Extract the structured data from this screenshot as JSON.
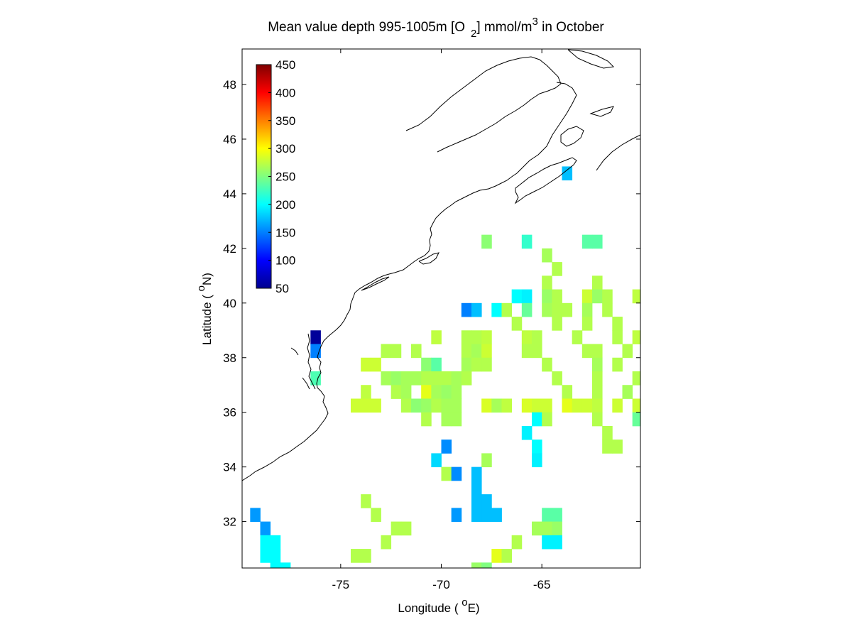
{
  "title": {
    "prefix": "Mean value depth 995-1005m [O",
    "subscript": "2",
    "middle": "] mmol/m",
    "superscript": "3",
    "suffix": " in October"
  },
  "xlabel": {
    "prefix": "Longitude ( ",
    "degree": "o",
    "suffix": "E)"
  },
  "ylabel": {
    "prefix": "Latitude ( ",
    "degree": "o",
    "suffix": "N)"
  },
  "colorbar": {
    "ticks": [
      "450",
      "400",
      "350",
      "300",
      "250",
      "200",
      "150",
      "100",
      "50"
    ],
    "range": [
      50,
      450
    ],
    "colormap": "jet",
    "placement": "top-left inside axes"
  },
  "chart_data": {
    "type": "heatmap",
    "title": "Mean value depth 995-1005m [O2] mmol/m3 in October",
    "xlabel": "Longitude ( oE)",
    "ylabel": "Latitude ( oN)",
    "xlim": [
      -79.9,
      -60.1
    ],
    "ylim": [
      30.3,
      49.3
    ],
    "x_ticks": [
      -75,
      -70,
      -65
    ],
    "y_ticks": [
      32,
      34,
      36,
      38,
      40,
      42,
      44,
      46,
      48
    ],
    "x_tick_labels": [
      "-75",
      "-70",
      "-65"
    ],
    "y_tick_labels": [
      "32",
      "34",
      "36",
      "38",
      "40",
      "42",
      "44",
      "46",
      "48"
    ],
    "grid": false,
    "cell_size_deg": 0.5,
    "cells": [
      {
        "lon": -67.75,
        "lat": 42.25,
        "v": 255
      },
      {
        "lon": -65.75,
        "lat": 42.25,
        "v": 220
      },
      {
        "lon": -62.75,
        "lat": 42.25,
        "v": 235
      },
      {
        "lon": -62.25,
        "lat": 42.25,
        "v": 235
      },
      {
        "lon": -64.75,
        "lat": 41.75,
        "v": 265
      },
      {
        "lon": -64.25,
        "lat": 41.25,
        "v": 270
      },
      {
        "lon": -64.75,
        "lat": 40.75,
        "v": 270
      },
      {
        "lon": -62.25,
        "lat": 40.75,
        "v": 270
      },
      {
        "lon": -66.25,
        "lat": 40.25,
        "v": 200
      },
      {
        "lon": -65.75,
        "lat": 40.25,
        "v": 195
      },
      {
        "lon": -64.75,
        "lat": 40.25,
        "v": 260
      },
      {
        "lon": -64.25,
        "lat": 40.25,
        "v": 270
      },
      {
        "lon": -62.75,
        "lat": 40.25,
        "v": 280
      },
      {
        "lon": -62.25,
        "lat": 40.25,
        "v": 260
      },
      {
        "lon": -61.75,
        "lat": 40.25,
        "v": 270
      },
      {
        "lon": -60.25,
        "lat": 40.25,
        "v": 275
      },
      {
        "lon": -68.75,
        "lat": 39.75,
        "v": 150
      },
      {
        "lon": -68.25,
        "lat": 39.75,
        "v": 175
      },
      {
        "lon": -67.25,
        "lat": 39.75,
        "v": 200
      },
      {
        "lon": -66.75,
        "lat": 39.75,
        "v": 270
      },
      {
        "lon": -65.75,
        "lat": 39.75,
        "v": 240
      },
      {
        "lon": -64.75,
        "lat": 39.75,
        "v": 265
      },
      {
        "lon": -64.25,
        "lat": 39.75,
        "v": 270
      },
      {
        "lon": -63.75,
        "lat": 39.75,
        "v": 270
      },
      {
        "lon": -62.75,
        "lat": 39.75,
        "v": 265
      },
      {
        "lon": -61.75,
        "lat": 39.75,
        "v": 270
      },
      {
        "lon": -66.25,
        "lat": 39.25,
        "v": 270
      },
      {
        "lon": -64.25,
        "lat": 39.25,
        "v": 270
      },
      {
        "lon": -62.75,
        "lat": 39.25,
        "v": 270
      },
      {
        "lon": -61.25,
        "lat": 39.25,
        "v": 270
      },
      {
        "lon": -70.25,
        "lat": 38.75,
        "v": 275
      },
      {
        "lon": -68.75,
        "lat": 38.75,
        "v": 270
      },
      {
        "lon": -68.25,
        "lat": 38.75,
        "v": 270
      },
      {
        "lon": -67.75,
        "lat": 38.75,
        "v": 275
      },
      {
        "lon": -65.75,
        "lat": 38.75,
        "v": 275
      },
      {
        "lon": -65.25,
        "lat": 38.75,
        "v": 270
      },
      {
        "lon": -63.25,
        "lat": 38.75,
        "v": 270
      },
      {
        "lon": -61.25,
        "lat": 38.75,
        "v": 270
      },
      {
        "lon": -60.25,
        "lat": 38.75,
        "v": 275
      },
      {
        "lon": -72.75,
        "lat": 38.25,
        "v": 270
      },
      {
        "lon": -72.25,
        "lat": 38.25,
        "v": 270
      },
      {
        "lon": -71.25,
        "lat": 38.25,
        "v": 270
      },
      {
        "lon": -68.75,
        "lat": 38.25,
        "v": 270
      },
      {
        "lon": -68.25,
        "lat": 38.25,
        "v": 265
      },
      {
        "lon": -67.75,
        "lat": 38.25,
        "v": 280
      },
      {
        "lon": -65.75,
        "lat": 38.25,
        "v": 270
      },
      {
        "lon": -65.25,
        "lat": 38.25,
        "v": 270
      },
      {
        "lon": -62.75,
        "lat": 38.25,
        "v": 270
      },
      {
        "lon": -62.25,
        "lat": 38.25,
        "v": 270
      },
      {
        "lon": -60.75,
        "lat": 38.25,
        "v": 270
      },
      {
        "lon": -73.75,
        "lat": 37.75,
        "v": 280
      },
      {
        "lon": -73.25,
        "lat": 37.75,
        "v": 280
      },
      {
        "lon": -70.75,
        "lat": 37.75,
        "v": 255
      },
      {
        "lon": -70.25,
        "lat": 37.75,
        "v": 235
      },
      {
        "lon": -68.75,
        "lat": 37.75,
        "v": 265
      },
      {
        "lon": -68.25,
        "lat": 37.75,
        "v": 270
      },
      {
        "lon": -67.75,
        "lat": 37.75,
        "v": 270
      },
      {
        "lon": -64.75,
        "lat": 37.75,
        "v": 270
      },
      {
        "lon": -62.25,
        "lat": 37.75,
        "v": 265
      },
      {
        "lon": -61.25,
        "lat": 37.75,
        "v": 270
      },
      {
        "lon": -72.75,
        "lat": 37.25,
        "v": 265
      },
      {
        "lon": -72.25,
        "lat": 37.25,
        "v": 260
      },
      {
        "lon": -71.75,
        "lat": 37.25,
        "v": 265
      },
      {
        "lon": -71.25,
        "lat": 37.25,
        "v": 265
      },
      {
        "lon": -70.75,
        "lat": 37.25,
        "v": 270
      },
      {
        "lon": -70.25,
        "lat": 37.25,
        "v": 270
      },
      {
        "lon": -69.75,
        "lat": 37.25,
        "v": 270
      },
      {
        "lon": -69.25,
        "lat": 37.25,
        "v": 265
      },
      {
        "lon": -68.75,
        "lat": 37.25,
        "v": 270
      },
      {
        "lon": -64.25,
        "lat": 37.25,
        "v": 270
      },
      {
        "lon": -62.25,
        "lat": 37.25,
        "v": 270
      },
      {
        "lon": -60.25,
        "lat": 37.25,
        "v": 270
      },
      {
        "lon": -73.75,
        "lat": 36.75,
        "v": 275
      },
      {
        "lon": -72.25,
        "lat": 36.75,
        "v": 270
      },
      {
        "lon": -71.75,
        "lat": 36.75,
        "v": 265
      },
      {
        "lon": -70.75,
        "lat": 36.75,
        "v": 290
      },
      {
        "lon": -70.25,
        "lat": 36.75,
        "v": 265
      },
      {
        "lon": -69.75,
        "lat": 36.75,
        "v": 260
      },
      {
        "lon": -69.25,
        "lat": 36.75,
        "v": 265
      },
      {
        "lon": -63.75,
        "lat": 36.75,
        "v": 270
      },
      {
        "lon": -62.25,
        "lat": 36.75,
        "v": 270
      },
      {
        "lon": -60.75,
        "lat": 36.75,
        "v": 265
      },
      {
        "lon": -74.25,
        "lat": 36.25,
        "v": 280
      },
      {
        "lon": -73.75,
        "lat": 36.25,
        "v": 280
      },
      {
        "lon": -73.25,
        "lat": 36.25,
        "v": 280
      },
      {
        "lon": -71.75,
        "lat": 36.25,
        "v": 270
      },
      {
        "lon": -71.25,
        "lat": 36.25,
        "v": 255
      },
      {
        "lon": -70.75,
        "lat": 36.25,
        "v": 260
      },
      {
        "lon": -70.25,
        "lat": 36.25,
        "v": 270
      },
      {
        "lon": -69.75,
        "lat": 36.25,
        "v": 265
      },
      {
        "lon": -69.25,
        "lat": 36.25,
        "v": 265
      },
      {
        "lon": -67.75,
        "lat": 36.25,
        "v": 285
      },
      {
        "lon": -67.25,
        "lat": 36.25,
        "v": 265
      },
      {
        "lon": -66.75,
        "lat": 36.25,
        "v": 275
      },
      {
        "lon": -65.75,
        "lat": 36.25,
        "v": 285
      },
      {
        "lon": -65.25,
        "lat": 36.25,
        "v": 280
      },
      {
        "lon": -64.75,
        "lat": 36.25,
        "v": 280
      },
      {
        "lon": -63.75,
        "lat": 36.25,
        "v": 290
      },
      {
        "lon": -63.25,
        "lat": 36.25,
        "v": 280
      },
      {
        "lon": -62.75,
        "lat": 36.25,
        "v": 280
      },
      {
        "lon": -62.25,
        "lat": 36.25,
        "v": 275
      },
      {
        "lon": -61.25,
        "lat": 36.25,
        "v": 280
      },
      {
        "lon": -60.25,
        "lat": 36.25,
        "v": 280
      },
      {
        "lon": -70.75,
        "lat": 35.75,
        "v": 270
      },
      {
        "lon": -69.75,
        "lat": 35.75,
        "v": 265
      },
      {
        "lon": -69.25,
        "lat": 35.75,
        "v": 265
      },
      {
        "lon": -65.25,
        "lat": 35.75,
        "v": 200
      },
      {
        "lon": -64.75,
        "lat": 35.75,
        "v": 270
      },
      {
        "lon": -62.25,
        "lat": 35.75,
        "v": 270
      },
      {
        "lon": -60.25,
        "lat": 35.75,
        "v": 240
      },
      {
        "lon": -65.75,
        "lat": 35.25,
        "v": 195
      },
      {
        "lon": -61.75,
        "lat": 35.25,
        "v": 270
      },
      {
        "lon": -69.75,
        "lat": 34.75,
        "v": 155
      },
      {
        "lon": -65.25,
        "lat": 34.75,
        "v": 200
      },
      {
        "lon": -61.75,
        "lat": 34.75,
        "v": 270
      },
      {
        "lon": -61.25,
        "lat": 34.75,
        "v": 270
      },
      {
        "lon": -70.25,
        "lat": 34.25,
        "v": 185
      },
      {
        "lon": -67.75,
        "lat": 34.25,
        "v": 265
      },
      {
        "lon": -65.25,
        "lat": 34.25,
        "v": 195
      },
      {
        "lon": -69.75,
        "lat": 33.75,
        "v": 270
      },
      {
        "lon": -69.25,
        "lat": 33.75,
        "v": 155
      },
      {
        "lon": -68.25,
        "lat": 33.75,
        "v": 175
      },
      {
        "lon": -68.25,
        "lat": 33.25,
        "v": 175
      },
      {
        "lon": -73.75,
        "lat": 32.75,
        "v": 270
      },
      {
        "lon": -68.25,
        "lat": 32.75,
        "v": 175
      },
      {
        "lon": -67.75,
        "lat": 32.75,
        "v": 175
      },
      {
        "lon": -79.25,
        "lat": 32.25,
        "v": 160
      },
      {
        "lon": -73.25,
        "lat": 32.25,
        "v": 270
      },
      {
        "lon": -69.25,
        "lat": 32.25,
        "v": 160
      },
      {
        "lon": -68.25,
        "lat": 32.25,
        "v": 175
      },
      {
        "lon": -67.75,
        "lat": 32.25,
        "v": 175
      },
      {
        "lon": -67.25,
        "lat": 32.25,
        "v": 175
      },
      {
        "lon": -64.75,
        "lat": 32.25,
        "v": 235
      },
      {
        "lon": -64.25,
        "lat": 32.25,
        "v": 235
      },
      {
        "lon": -78.75,
        "lat": 31.75,
        "v": 160
      },
      {
        "lon": -72.25,
        "lat": 31.75,
        "v": 270
      },
      {
        "lon": -71.75,
        "lat": 31.75,
        "v": 270
      },
      {
        "lon": -65.25,
        "lat": 31.75,
        "v": 265
      },
      {
        "lon": -64.75,
        "lat": 31.75,
        "v": 265
      },
      {
        "lon": -64.25,
        "lat": 31.75,
        "v": 260
      },
      {
        "lon": -78.75,
        "lat": 31.25,
        "v": 200
      },
      {
        "lon": -78.25,
        "lat": 31.25,
        "v": 200
      },
      {
        "lon": -72.75,
        "lat": 31.25,
        "v": 270
      },
      {
        "lon": -66.25,
        "lat": 31.25,
        "v": 270
      },
      {
        "lon": -64.75,
        "lat": 31.25,
        "v": 195
      },
      {
        "lon": -64.25,
        "lat": 31.25,
        "v": 195
      },
      {
        "lon": -78.75,
        "lat": 30.75,
        "v": 200
      },
      {
        "lon": -78.25,
        "lat": 30.75,
        "v": 200
      },
      {
        "lon": -74.25,
        "lat": 30.75,
        "v": 270
      },
      {
        "lon": -73.75,
        "lat": 30.75,
        "v": 270
      },
      {
        "lon": -67.25,
        "lat": 30.75,
        "v": 290
      },
      {
        "lon": -66.75,
        "lat": 30.75,
        "v": 270
      },
      {
        "lon": -78.25,
        "lat": 30.25,
        "v": 200
      },
      {
        "lon": -77.75,
        "lat": 30.25,
        "v": 200
      },
      {
        "lon": -68.25,
        "lat": 30.25,
        "v": 260
      },
      {
        "lon": -67.75,
        "lat": 30.25,
        "v": 250
      },
      {
        "lon": -76.25,
        "lat": 38.75,
        "v": 60
      },
      {
        "lon": -76.25,
        "lat": 38.25,
        "v": 150
      },
      {
        "lon": -76.25,
        "lat": 37.25,
        "v": 230
      },
      {
        "lon": -63.75,
        "lat": 44.75,
        "v": 175
      }
    ]
  }
}
